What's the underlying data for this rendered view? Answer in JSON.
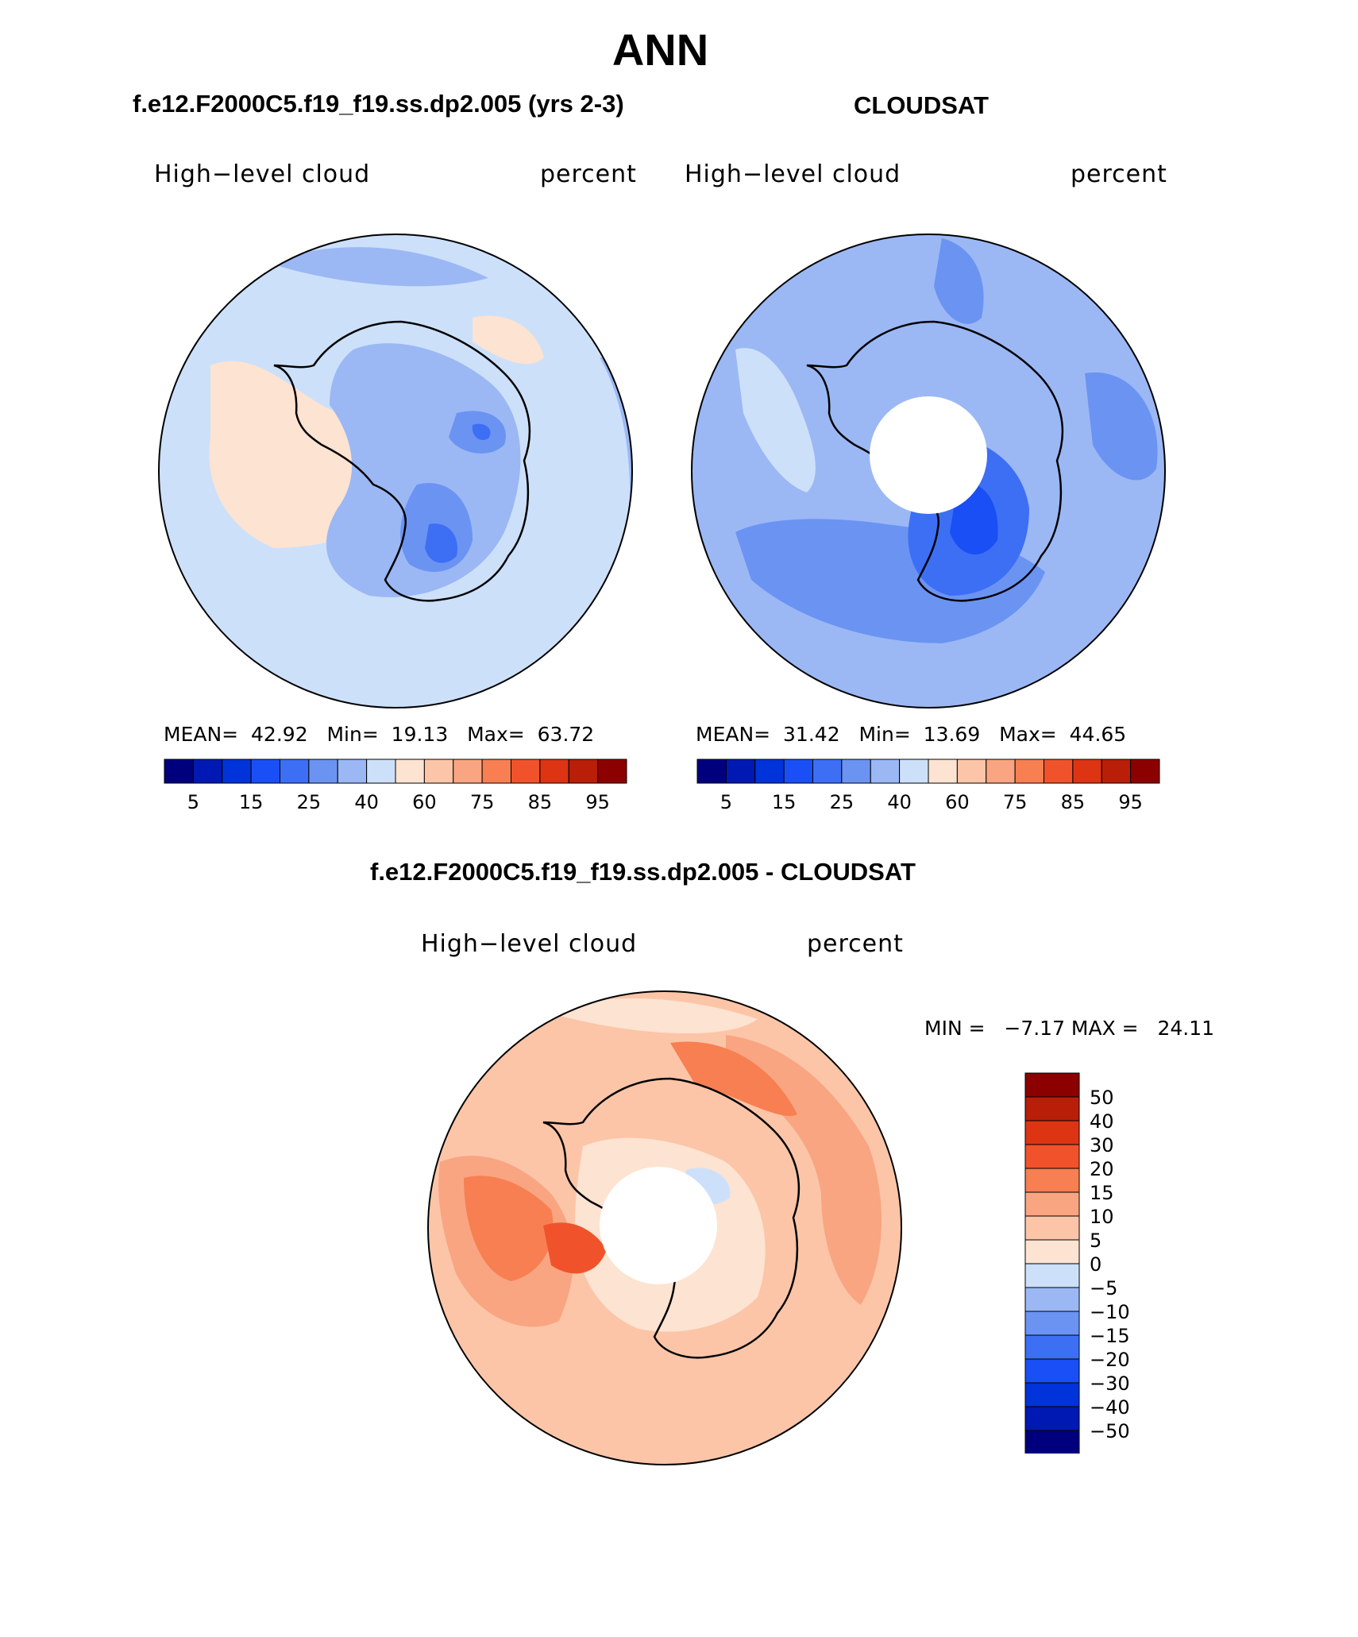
{
  "title": "ANN",
  "panels": [
    {
      "heading": "f.e12.F2000C5.f19_f19.ss.dp2.005 (yrs 2-3)",
      "variable": "High−level cloud",
      "units": "percent",
      "stats": {
        "mean_label": "MEAN=",
        "mean": "42.92",
        "min_label": "Min=",
        "min": "19.13",
        "max_label": "Max=",
        "max": "63.72"
      }
    },
    {
      "heading": "CLOUDSAT",
      "variable": "High−level cloud",
      "units": "percent",
      "stats": {
        "mean_label": "MEAN=",
        "mean": "31.42",
        "min_label": "Min=",
        "min": "13.69",
        "max_label": "Max=",
        "max": "44.65"
      }
    }
  ],
  "seq_colorbar": {
    "colors": [
      "#00007f",
      "#0019b2",
      "#0033d9",
      "#1a4ff5",
      "#3d6ff5",
      "#6b93f2",
      "#9bb8f5",
      "#cde0fa",
      "#fde3d1",
      "#fcc5a8",
      "#f9a582",
      "#f77f52",
      "#f0532b",
      "#dd3414",
      "#b81e08",
      "#8c0000"
    ],
    "labels": [
      "5",
      "15",
      "25",
      "40",
      "60",
      "75",
      "85",
      "95"
    ]
  },
  "diff_panel": {
    "heading": "f.e12.F2000C5.f19_f19.ss.dp2.005 - CLOUDSAT",
    "variable": "High−level cloud",
    "units": "percent",
    "minmax": "MIN =   −7.17 MAX =   24.11"
  },
  "diff_colorbar": {
    "colors": [
      "#8c0000",
      "#b81e08",
      "#dd3414",
      "#f0532b",
      "#f77f52",
      "#f9a582",
      "#fcc5a8",
      "#fde3d1",
      "#cde0fa",
      "#9bb8f5",
      "#6b93f2",
      "#3d6ff5",
      "#1a4ff5",
      "#0033d9",
      "#0019b2",
      "#00007f"
    ],
    "labels": [
      "50",
      "40",
      "30",
      "20",
      "15",
      "10",
      "5",
      "0",
      "−5",
      "−10",
      "−15",
      "−20",
      "−30",
      "−40",
      "−50"
    ]
  }
}
